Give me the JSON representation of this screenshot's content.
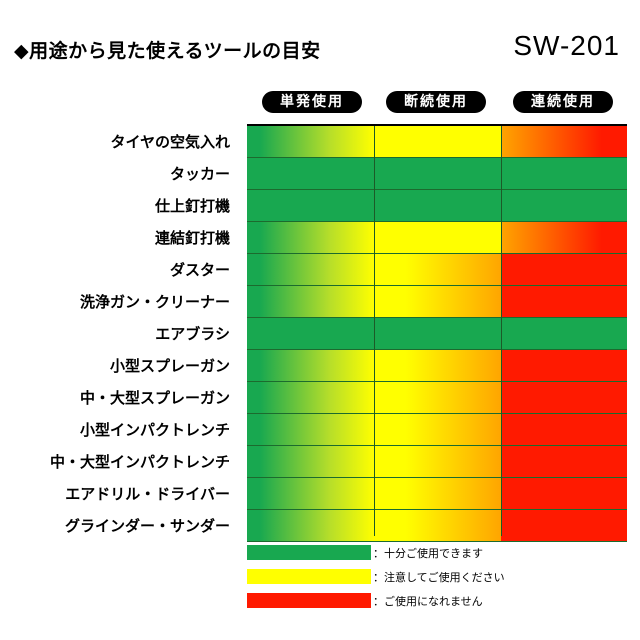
{
  "header": {
    "title": "◆用途から見た使えるツールの目安",
    "model": "SW-201"
  },
  "colors": {
    "green": "#18a850",
    "yellow": "#ffff00",
    "orange": "#ffa500",
    "red": "#ff1a00"
  },
  "chart_data": {
    "type": "heatmap",
    "columns": [
      "単発使用",
      "断続使用",
      "連続使用"
    ],
    "rows": [
      {
        "label": "タイヤの空気入れ",
        "levels": [
          "green-to-yellow",
          "yellow",
          "orange-to-red"
        ]
      },
      {
        "label": "タッカー",
        "levels": [
          "green",
          "green",
          "green"
        ]
      },
      {
        "label": "仕上釘打機",
        "levels": [
          "green",
          "green",
          "green"
        ]
      },
      {
        "label": "連結釘打機",
        "levels": [
          "green-to-yellow",
          "yellow",
          "orange-to-red"
        ]
      },
      {
        "label": "ダスター",
        "levels": [
          "green-to-yellow",
          "yellow-to-orange",
          "red"
        ]
      },
      {
        "label": "洗浄ガン・クリーナー",
        "levels": [
          "green-to-yellow",
          "yellow-to-orange",
          "red"
        ]
      },
      {
        "label": "エアブラシ",
        "levels": [
          "green",
          "green",
          "green"
        ]
      },
      {
        "label": "小型スプレーガン",
        "levels": [
          "green-to-yellow",
          "yellow-to-orange",
          "red"
        ]
      },
      {
        "label": "中・大型スプレーガン",
        "levels": [
          "green-to-yellow",
          "yellow-to-orange",
          "red"
        ]
      },
      {
        "label": "小型インパクトレンチ",
        "levels": [
          "green-to-yellow",
          "yellow-to-orange",
          "red"
        ]
      },
      {
        "label": "中・大型インパクトレンチ",
        "levels": [
          "green-to-yellow",
          "yellow-to-orange",
          "red"
        ]
      },
      {
        "label": "エアドリル・ドライバー",
        "levels": [
          "green-to-yellow",
          "yellow-to-orange",
          "red"
        ]
      },
      {
        "label": "グラインダー・サンダー",
        "levels": [
          "green-to-yellow",
          "yellow-to-orange",
          "red"
        ]
      }
    ],
    "legend": [
      {
        "color": "green",
        "label": "：十分ご使用できます"
      },
      {
        "color": "yellow",
        "label": "：注意してご使用ください"
      },
      {
        "color": "red",
        "label": "：ご使用になれません"
      }
    ]
  }
}
